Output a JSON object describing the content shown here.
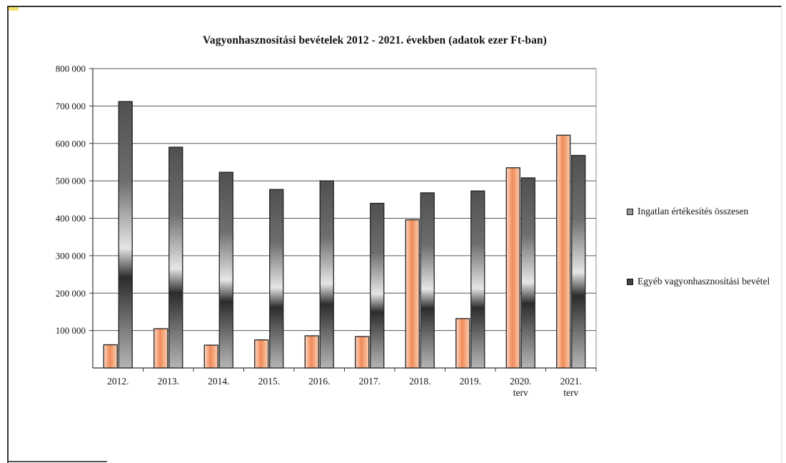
{
  "chart_data": {
    "type": "bar",
    "title": "Vagyonhasznosítási bevételek 2012 - 2021. években (adatok ezer Ft-ban)",
    "categories": [
      [
        "2012."
      ],
      [
        "2013."
      ],
      [
        "2014."
      ],
      [
        "2015."
      ],
      [
        "2016."
      ],
      [
        "2017."
      ],
      [
        "2018."
      ],
      [
        "2019."
      ],
      [
        "2020.",
        "terv"
      ],
      [
        "2021.",
        "terv"
      ]
    ],
    "series": [
      {
        "name": "Ingatlan értékesítés összesen",
        "values": [
          62000,
          105000,
          61000,
          75000,
          86000,
          84000,
          396000,
          132000,
          535000,
          622000
        ],
        "color": "#f4a072"
      },
      {
        "name": "Egyéb vagyonhasznosítási bevétel",
        "values": [
          712000,
          590000,
          523000,
          477000,
          500000,
          440000,
          468000,
          473000,
          508000,
          568000
        ],
        "color": "#5a5a5a"
      }
    ],
    "ylim": [
      0,
      800000
    ],
    "yticks": [
      {
        "value": 100000,
        "label": "100 000"
      },
      {
        "value": 200000,
        "label": "200 000"
      },
      {
        "value": 300000,
        "label": "300 000"
      },
      {
        "value": 400000,
        "label": "400 000"
      },
      {
        "value": 500000,
        "label": "500 000"
      },
      {
        "value": 600000,
        "label": "600 000"
      },
      {
        "value": 700000,
        "label": "700 000"
      },
      {
        "value": 800000,
        "label": "800 000"
      }
    ],
    "grid": true,
    "legend_position": "right"
  }
}
